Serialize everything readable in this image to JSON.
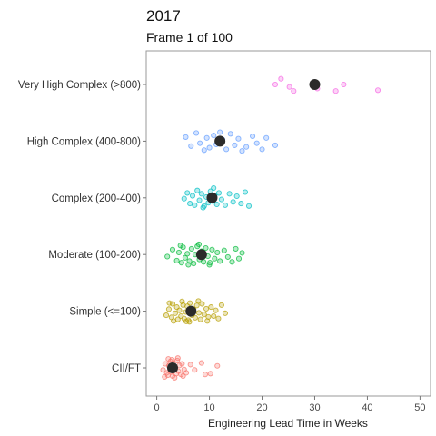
{
  "title": "2017",
  "subtitle": "Frame 1 of 100",
  "chart_data": {
    "type": "scatter",
    "orientation": "horizontal-jitter",
    "xlabel": "Engineering Lead Time in Weeks",
    "ylabel": "",
    "xlim": [
      -2,
      52
    ],
    "xticks": [
      0,
      10,
      20,
      30,
      40,
      50
    ],
    "grid": false,
    "legend": "none",
    "mean_marker_color": "#2b2b2b",
    "categories": [
      "CII/FT",
      "Simple (<=100)",
      "Moderate (100-200)",
      "Complex (200-400)",
      "High Complex (400-800)",
      "Very High Complex (>800)"
    ],
    "series": [
      {
        "category": "CII/FT",
        "color": "#F8766D",
        "mean": 3.0,
        "points": [
          [
            1.2,
            0.05
          ],
          [
            1.6,
            -0.1
          ],
          [
            1.9,
            0.12
          ],
          [
            2.1,
            0.18
          ],
          [
            2.3,
            -0.05
          ],
          [
            2.5,
            0.02
          ],
          [
            2.6,
            -0.16
          ],
          [
            2.8,
            0.1
          ],
          [
            3.0,
            0.2
          ],
          [
            3.1,
            -0.12
          ],
          [
            3.3,
            0.05
          ],
          [
            3.5,
            -0.02
          ],
          [
            3.7,
            0.14
          ],
          [
            3.9,
            -0.18
          ],
          [
            4.1,
            0.08
          ],
          [
            4.3,
            -0.06
          ],
          [
            4.6,
            0.16
          ],
          [
            4.8,
            -0.1
          ],
          [
            5.2,
            0.04
          ],
          [
            5.6,
            0.12
          ],
          [
            6.4,
            -0.08
          ],
          [
            7.2,
            0.05
          ],
          [
            8.5,
            -0.12
          ],
          [
            9.2,
            0.16
          ],
          [
            10.2,
            0.14
          ],
          [
            11.5,
            -0.05
          ],
          [
            2.2,
            -0.22
          ],
          [
            3.4,
            0.24
          ],
          [
            1.5,
            0.22
          ],
          [
            4.0,
            -0.24
          ],
          [
            2.9,
            -0.2
          ],
          [
            5.0,
            0.2
          ]
        ]
      },
      {
        "category": "Simple (<=100)",
        "color": "#B79F00",
        "mean": 6.5,
        "points": [
          [
            1.8,
            0.1
          ],
          [
            2.3,
            -0.05
          ],
          [
            2.8,
            0.15
          ],
          [
            3.0,
            -0.18
          ],
          [
            3.5,
            0.05
          ],
          [
            3.8,
            -0.1
          ],
          [
            4.0,
            0.2
          ],
          [
            4.3,
            -0.02
          ],
          [
            4.6,
            0.12
          ],
          [
            5.0,
            -0.15
          ],
          [
            5.2,
            0.18
          ],
          [
            5.5,
            0.02
          ],
          [
            5.8,
            -0.12
          ],
          [
            6.0,
            0.22
          ],
          [
            6.3,
            -0.2
          ],
          [
            6.7,
            0.1
          ],
          [
            7.0,
            -0.05
          ],
          [
            7.3,
            0.16
          ],
          [
            7.6,
            -0.14
          ],
          [
            8.0,
            0.04
          ],
          [
            8.3,
            0.2
          ],
          [
            8.6,
            -0.18
          ],
          [
            9.0,
            0.08
          ],
          [
            9.4,
            -0.06
          ],
          [
            9.8,
            0.14
          ],
          [
            10.3,
            -0.1
          ],
          [
            10.8,
            0.12
          ],
          [
            11.2,
            -0.02
          ],
          [
            11.7,
            0.18
          ],
          [
            12.3,
            -0.15
          ],
          [
            13.0,
            0.05
          ],
          [
            3.2,
            0.24
          ],
          [
            4.8,
            -0.24
          ],
          [
            6.2,
            0.26
          ],
          [
            7.9,
            -0.25
          ],
          [
            5.6,
            0.25
          ],
          [
            9.6,
            0.24
          ],
          [
            2.4,
            -0.2
          ]
        ]
      },
      {
        "category": "Moderate (100-200)",
        "color": "#00BA38",
        "mean": 8.5,
        "points": [
          [
            2.0,
            0.05
          ],
          [
            3.0,
            -0.12
          ],
          [
            3.8,
            0.15
          ],
          [
            4.2,
            -0.05
          ],
          [
            4.7,
            0.2
          ],
          [
            5.0,
            -0.18
          ],
          [
            5.4,
            0.08
          ],
          [
            5.8,
            -0.02
          ],
          [
            6.2,
            0.16
          ],
          [
            6.6,
            -0.14
          ],
          [
            7.0,
            0.22
          ],
          [
            7.3,
            0.0
          ],
          [
            7.7,
            -0.2
          ],
          [
            8.1,
            0.12
          ],
          [
            8.5,
            -0.08
          ],
          [
            8.9,
            0.18
          ],
          [
            9.3,
            -0.16
          ],
          [
            9.7,
            0.04
          ],
          [
            10.1,
            0.2
          ],
          [
            10.5,
            -0.12
          ],
          [
            11.0,
            0.1
          ],
          [
            11.5,
            -0.05
          ],
          [
            12.0,
            0.16
          ],
          [
            12.8,
            -0.1
          ],
          [
            13.5,
            0.06
          ],
          [
            14.3,
            0.18
          ],
          [
            15.0,
            -0.14
          ],
          [
            15.6,
            0.1
          ],
          [
            16.2,
            -0.04
          ],
          [
            6.0,
            0.25
          ],
          [
            8.0,
            -0.25
          ],
          [
            10.0,
            0.25
          ],
          [
            4.5,
            -0.22
          ]
        ]
      },
      {
        "category": "Complex (200-400)",
        "color": "#00BFC4",
        "mean": 10.5,
        "points": [
          [
            5.2,
            0.02
          ],
          [
            5.8,
            -0.12
          ],
          [
            6.3,
            0.14
          ],
          [
            6.8,
            -0.05
          ],
          [
            7.2,
            0.18
          ],
          [
            7.7,
            -0.18
          ],
          [
            8.1,
            0.06
          ],
          [
            8.5,
            -0.1
          ],
          [
            9.0,
            0.2
          ],
          [
            9.4,
            -0.02
          ],
          [
            9.8,
            0.12
          ],
          [
            10.2,
            -0.16
          ],
          [
            10.6,
            0.08
          ],
          [
            11.0,
            -0.06
          ],
          [
            11.4,
            0.16
          ],
          [
            11.8,
            -0.12
          ],
          [
            12.3,
            0.04
          ],
          [
            13.0,
            0.18
          ],
          [
            13.8,
            -0.1
          ],
          [
            14.5,
            0.1
          ],
          [
            15.2,
            -0.04
          ],
          [
            16.0,
            0.14
          ],
          [
            16.8,
            -0.14
          ],
          [
            17.5,
            0.2
          ],
          [
            8.8,
            0.24
          ],
          [
            10.8,
            -0.24
          ]
        ]
      },
      {
        "category": "High Complex (400-800)",
        "color": "#619CFF",
        "mean": 12.0,
        "points": [
          [
            5.5,
            -0.1
          ],
          [
            6.5,
            0.12
          ],
          [
            7.5,
            -0.2
          ],
          [
            8.2,
            0.05
          ],
          [
            9.0,
            0.22
          ],
          [
            9.5,
            -0.08
          ],
          [
            10.0,
            0.16
          ],
          [
            10.8,
            -0.14
          ],
          [
            11.3,
            0.08
          ],
          [
            12.5,
            -0.04
          ],
          [
            13.2,
            0.2
          ],
          [
            14.0,
            -0.18
          ],
          [
            14.8,
            0.1
          ],
          [
            15.5,
            -0.06
          ],
          [
            17.0,
            0.14
          ],
          [
            18.2,
            -0.12
          ],
          [
            19.0,
            0.05
          ],
          [
            20.0,
            0.2
          ],
          [
            20.8,
            -0.08
          ],
          [
            22.5,
            0.1
          ],
          [
            12.0,
            -0.22
          ],
          [
            16.2,
            0.24
          ]
        ]
      },
      {
        "category": "Very High Complex (>800)",
        "color": "#F564E3",
        "mean": 30.0,
        "points": [
          [
            22.5,
            0.0
          ],
          [
            23.6,
            -0.14
          ],
          [
            25.2,
            0.06
          ],
          [
            26.0,
            0.16
          ],
          [
            30.5,
            0.1
          ],
          [
            34.0,
            0.16
          ],
          [
            35.5,
            0.0
          ],
          [
            42.0,
            0.14
          ]
        ]
      }
    ]
  }
}
